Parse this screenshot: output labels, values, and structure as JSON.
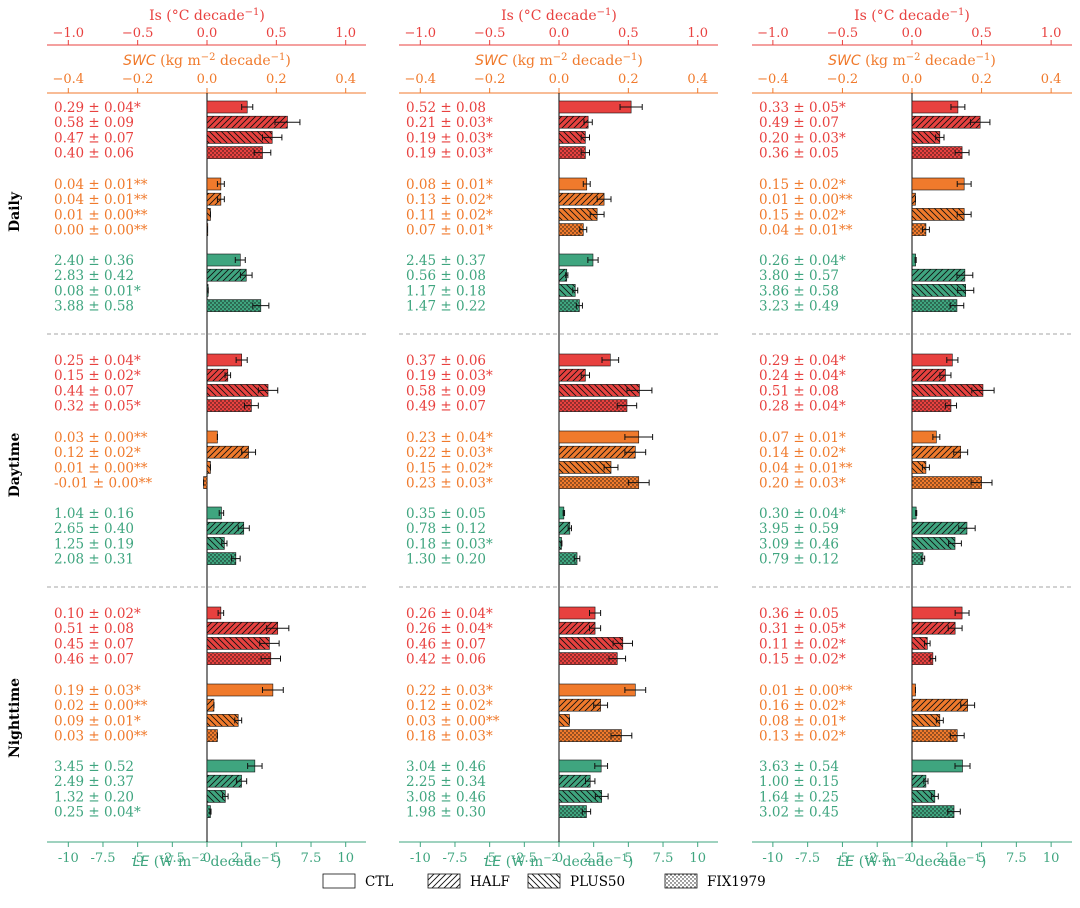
{
  "chart_data": {
    "type": "bar",
    "orientation": "horizontal",
    "panel_columns": 3,
    "rows": [
      "Daily",
      "Daytime",
      "Nighttime"
    ],
    "groups": [
      "Is",
      "SWC",
      "LE"
    ],
    "scenarios": [
      "CTL",
      "HALF",
      "PLUS50",
      "FIX1979"
    ],
    "colors": {
      "Is": "#e8413f",
      "SWC": "#f07a2c",
      "LE": "#3fa57f"
    },
    "axes": {
      "Is": {
        "label_main": "Is",
        "label_unit_1": " (°C decade",
        "label_sup": "−1",
        "label_unit_2": ")",
        "lim": [
          -1.2,
          1.1
        ],
        "ticks": [
          -1.0,
          -0.5,
          0.0,
          0.5,
          1.0
        ],
        "tick_labels": [
          "−1.0",
          "−0.5",
          "0.0",
          "0.5",
          "1.0"
        ]
      },
      "SWC": {
        "label_main": "SWC",
        "label_unit_1": " (kg m",
        "label_sup": "−2",
        "label_unit_2": " decade",
        "label_sup2": "−1",
        "label_unit_3": ")",
        "lim": [
          -0.48,
          0.44
        ],
        "ticks": [
          -0.4,
          -0.2,
          0.0,
          0.2,
          0.4
        ],
        "tick_labels": [
          "−0.4",
          "−0.2",
          "0.0",
          "0.2",
          "0.4"
        ]
      },
      "LE": {
        "label_main": "LE",
        "label_unit_1": " (W m",
        "label_sup": "−2",
        "label_unit_2": " decade",
        "label_sup2": "−1",
        "label_unit_3": ")",
        "lim": [
          -12.0,
          11.0
        ],
        "ticks": [
          -10,
          -7.5,
          -5,
          -2.5,
          0,
          2.5,
          5,
          7.5,
          10
        ],
        "tick_labels": [
          "-10",
          "-7.5",
          "-5",
          "-2.5",
          "0",
          "2.5",
          "5",
          "7.5",
          "10"
        ]
      }
    },
    "panels": [
      [
        {
          "Is": [
            {
              "v": 0.29,
              "t": "0.29 ± 0.04*"
            },
            {
              "v": 0.58,
              "t": "0.58 ± 0.09"
            },
            {
              "v": 0.47,
              "t": "0.47 ± 0.07"
            },
            {
              "v": 0.4,
              "t": "0.40 ± 0.06"
            }
          ],
          "SWC": [
            {
              "v": 0.04,
              "t": "0.04 ± 0.01**"
            },
            {
              "v": 0.04,
              "t": "0.04 ± 0.01**"
            },
            {
              "v": 0.01,
              "t": "0.01 ± 0.00**"
            },
            {
              "v": 0.0,
              "t": "0.00 ± 0.00**"
            }
          ],
          "LE": [
            {
              "v": 2.4,
              "t": "2.40 ± 0.36"
            },
            {
              "v": 2.83,
              "t": "2.83 ± 0.42"
            },
            {
              "v": 0.08,
              "t": "0.08 ± 0.01*"
            },
            {
              "v": 3.88,
              "t": "3.88 ± 0.58"
            }
          ]
        },
        {
          "Is": [
            {
              "v": 0.52,
              "t": "0.52 ± 0.08"
            },
            {
              "v": 0.21,
              "t": "0.21 ± 0.03*"
            },
            {
              "v": 0.19,
              "t": "0.19 ± 0.03*"
            },
            {
              "v": 0.19,
              "t": "0.19 ± 0.03*"
            }
          ],
          "SWC": [
            {
              "v": 0.08,
              "t": "0.08 ± 0.01*"
            },
            {
              "v": 0.13,
              "t": "0.13 ± 0.02*"
            },
            {
              "v": 0.11,
              "t": "0.11 ± 0.02*"
            },
            {
              "v": 0.07,
              "t": "0.07 ± 0.01*"
            }
          ],
          "LE": [
            {
              "v": 2.45,
              "t": "2.45 ± 0.37"
            },
            {
              "v": 0.56,
              "t": "0.56 ± 0.08"
            },
            {
              "v": 1.17,
              "t": "1.17 ± 0.18"
            },
            {
              "v": 1.47,
              "t": "1.47 ± 0.22"
            }
          ]
        },
        {
          "Is": [
            {
              "v": 0.33,
              "t": "0.33 ± 0.05*"
            },
            {
              "v": 0.49,
              "t": "0.49 ± 0.07"
            },
            {
              "v": 0.2,
              "t": "0.20 ± 0.03*"
            },
            {
              "v": 0.36,
              "t": "0.36 ± 0.05"
            }
          ],
          "SWC": [
            {
              "v": 0.15,
              "t": "0.15 ± 0.02*"
            },
            {
              "v": 0.01,
              "t": "0.01 ± 0.00**"
            },
            {
              "v": 0.15,
              "t": "0.15 ± 0.02*"
            },
            {
              "v": 0.04,
              "t": "0.04 ± 0.01**"
            }
          ],
          "LE": [
            {
              "v": 0.26,
              "t": "0.26 ± 0.04*"
            },
            {
              "v": 3.8,
              "t": "3.80 ± 0.57"
            },
            {
              "v": 3.86,
              "t": "3.86 ± 0.58"
            },
            {
              "v": 3.23,
              "t": "3.23 ± 0.49"
            }
          ]
        }
      ],
      [
        {
          "Is": [
            {
              "v": 0.25,
              "t": "0.25 ± 0.04*"
            },
            {
              "v": 0.15,
              "t": "0.15 ± 0.02*"
            },
            {
              "v": 0.44,
              "t": "0.44 ± 0.07"
            },
            {
              "v": 0.32,
              "t": "0.32 ± 0.05*"
            }
          ],
          "SWC": [
            {
              "v": 0.03,
              "t": "0.03 ± 0.00**"
            },
            {
              "v": 0.12,
              "t": "0.12 ± 0.02*"
            },
            {
              "v": 0.01,
              "t": "0.01 ± 0.00**"
            },
            {
              "v": -0.01,
              "t": "-0.01 ± 0.00**"
            }
          ],
          "LE": [
            {
              "v": 1.04,
              "t": "1.04 ± 0.16"
            },
            {
              "v": 2.65,
              "t": "2.65 ± 0.40"
            },
            {
              "v": 1.25,
              "t": "1.25 ± 0.19"
            },
            {
              "v": 2.08,
              "t": "2.08 ± 0.31"
            }
          ]
        },
        {
          "Is": [
            {
              "v": 0.37,
              "t": "0.37 ± 0.06"
            },
            {
              "v": 0.19,
              "t": "0.19 ± 0.03*"
            },
            {
              "v": 0.58,
              "t": "0.58 ± 0.09"
            },
            {
              "v": 0.49,
              "t": "0.49 ± 0.07"
            }
          ],
          "SWC": [
            {
              "v": 0.23,
              "t": "0.23 ± 0.04*"
            },
            {
              "v": 0.22,
              "t": "0.22 ± 0.03*"
            },
            {
              "v": 0.15,
              "t": "0.15 ± 0.02*"
            },
            {
              "v": 0.23,
              "t": "0.23 ± 0.03*"
            }
          ],
          "LE": [
            {
              "v": 0.35,
              "t": "0.35 ± 0.05"
            },
            {
              "v": 0.78,
              "t": "0.78 ± 0.12"
            },
            {
              "v": 0.18,
              "t": "0.18 ± 0.03*"
            },
            {
              "v": 1.3,
              "t": "1.30 ± 0.20"
            }
          ]
        },
        {
          "Is": [
            {
              "v": 0.29,
              "t": "0.29 ± 0.04*"
            },
            {
              "v": 0.24,
              "t": "0.24 ± 0.04*"
            },
            {
              "v": 0.51,
              "t": "0.51 ± 0.08"
            },
            {
              "v": 0.28,
              "t": "0.28 ± 0.04*"
            }
          ],
          "SWC": [
            {
              "v": 0.07,
              "t": "0.07 ± 0.01*"
            },
            {
              "v": 0.14,
              "t": "0.14 ± 0.02*"
            },
            {
              "v": 0.04,
              "t": "0.04 ± 0.01**"
            },
            {
              "v": 0.2,
              "t": "0.20 ± 0.03*"
            }
          ],
          "LE": [
            {
              "v": 0.3,
              "t": "0.30 ± 0.04*"
            },
            {
              "v": 3.95,
              "t": "3.95 ± 0.59"
            },
            {
              "v": 3.09,
              "t": "3.09 ± 0.46"
            },
            {
              "v": 0.79,
              "t": "0.79 ± 0.12"
            }
          ]
        }
      ],
      [
        {
          "Is": [
            {
              "v": 0.1,
              "t": "0.10 ± 0.02*"
            },
            {
              "v": 0.51,
              "t": "0.51 ± 0.08"
            },
            {
              "v": 0.45,
              "t": "0.45 ± 0.07"
            },
            {
              "v": 0.46,
              "t": "0.46 ± 0.07"
            }
          ],
          "SWC": [
            {
              "v": 0.19,
              "t": "0.19 ± 0.03*"
            },
            {
              "v": 0.02,
              "t": "0.02 ± 0.00**"
            },
            {
              "v": 0.09,
              "t": "0.09 ± 0.01*"
            },
            {
              "v": 0.03,
              "t": "0.03 ± 0.00**"
            }
          ],
          "LE": [
            {
              "v": 3.45,
              "t": "3.45 ± 0.52"
            },
            {
              "v": 2.49,
              "t": "2.49 ± 0.37"
            },
            {
              "v": 1.32,
              "t": "1.32 ± 0.20"
            },
            {
              "v": 0.25,
              "t": "0.25 ± 0.04*"
            }
          ]
        },
        {
          "Is": [
            {
              "v": 0.26,
              "t": "0.26 ± 0.04*"
            },
            {
              "v": 0.26,
              "t": "0.26 ± 0.04*"
            },
            {
              "v": 0.46,
              "t": "0.46 ± 0.07"
            },
            {
              "v": 0.42,
              "t": "0.42 ± 0.06"
            }
          ],
          "SWC": [
            {
              "v": 0.22,
              "t": "0.22 ± 0.03*"
            },
            {
              "v": 0.12,
              "t": "0.12 ± 0.02*"
            },
            {
              "v": 0.03,
              "t": "0.03 ± 0.00**"
            },
            {
              "v": 0.18,
              "t": "0.18 ± 0.03*"
            }
          ],
          "LE": [
            {
              "v": 3.04,
              "t": "3.04 ± 0.46"
            },
            {
              "v": 2.25,
              "t": "2.25 ± 0.34"
            },
            {
              "v": 3.08,
              "t": "3.08 ± 0.46"
            },
            {
              "v": 1.98,
              "t": "1.98 ± 0.30"
            }
          ]
        },
        {
          "Is": [
            {
              "v": 0.36,
              "t": "0.36 ± 0.05"
            },
            {
              "v": 0.31,
              "t": "0.31 ± 0.05*"
            },
            {
              "v": 0.11,
              "t": "0.11 ± 0.02*"
            },
            {
              "v": 0.15,
              "t": "0.15 ± 0.02*"
            }
          ],
          "SWC": [
            {
              "v": 0.01,
              "t": "0.01 ± 0.00**"
            },
            {
              "v": 0.16,
              "t": "0.16 ± 0.02*"
            },
            {
              "v": 0.08,
              "t": "0.08 ± 0.01*"
            },
            {
              "v": 0.13,
              "t": "0.13 ± 0.02*"
            }
          ],
          "LE": [
            {
              "v": 3.63,
              "t": "3.63 ± 0.54"
            },
            {
              "v": 1.0,
              "t": "1.00 ± 0.15"
            },
            {
              "v": 1.64,
              "t": "1.64 ± 0.25"
            },
            {
              "v": 3.02,
              "t": "3.02 ± 0.45"
            }
          ]
        }
      ]
    ],
    "legend": {
      "placement": "bottom",
      "entries": [
        "CTL",
        "HALF",
        "PLUS50",
        "FIX1979"
      ]
    }
  }
}
